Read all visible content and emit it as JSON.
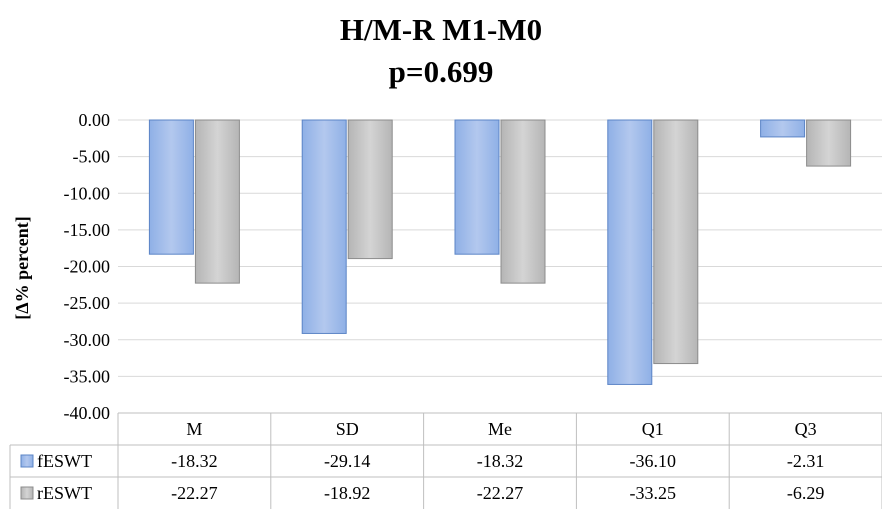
{
  "chart_data": {
    "type": "bar",
    "title": "H/M-R M1-M0",
    "subtitle": "p=0.699",
    "ylabel": "[Δ% percent]",
    "ylim": [
      -40,
      0
    ],
    "y_ticks": [
      "0.00",
      "-5.00",
      "-10.00",
      "-15.00",
      "-20.00",
      "-25.00",
      "-30.00",
      "-35.00",
      "-40.00"
    ],
    "categories": [
      "M",
      "SD",
      "Me",
      "Q1",
      "Q3"
    ],
    "grid": true,
    "legend": "data-table",
    "series": [
      {
        "name": "fESWT",
        "color": "#9db7e3",
        "values": [
          -18.32,
          -29.14,
          -18.32,
          -36.1,
          -2.31
        ],
        "labels": [
          "-18.32",
          "-29.14",
          "-18.32",
          "-36.10",
          "-2.31"
        ]
      },
      {
        "name": "rESWT",
        "color": "#c0c0c0",
        "values": [
          -22.27,
          -18.92,
          -22.27,
          -33.25,
          -6.29
        ],
        "labels": [
          "-22.27",
          "-18.92",
          "-22.27",
          "-33.25",
          "-6.29"
        ]
      }
    ]
  }
}
